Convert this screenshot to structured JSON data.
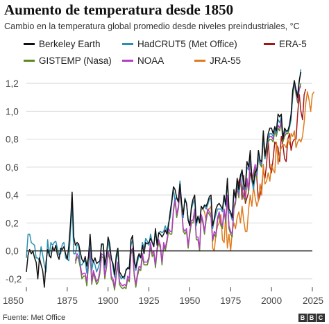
{
  "chart_data": {
    "type": "line",
    "title": "Aumento de temperatura desde 1850",
    "subtitle": "Cambio en la temperatura global promedio desde niveles preindustriales, °C",
    "xlabel": "",
    "ylabel": "",
    "xlim": [
      1850,
      2025
    ],
    "ylim": [
      -0.25,
      1.32
    ],
    "x_ticks": [
      "1850",
      "1875",
      "1900",
      "1925",
      "1950",
      "1975",
      "2000",
      "2025"
    ],
    "x_tick_values": [
      1850,
      1875,
      1900,
      1925,
      1950,
      1975,
      2000,
      2025
    ],
    "y_ticks": [
      "-0,2",
      "0,0",
      "0,2",
      "0,4",
      "0,6",
      "0,8",
      "1,0",
      "1,2"
    ],
    "y_tick_values": [
      -0.2,
      0.0,
      0.2,
      0.4,
      0.6,
      0.8,
      1.0,
      1.2
    ],
    "grid": true,
    "legend_position": "top",
    "series": [
      {
        "name": "Berkeley Earth",
        "color": "#111111",
        "start": 1850,
        "values": [
          -0.15,
          -0.03,
          0.01,
          -0.02,
          0.0,
          -0.05,
          -0.08,
          -0.2,
          -0.05,
          -0.1,
          -0.14,
          -0.26,
          -0.08,
          0.01,
          -0.03,
          -0.05,
          0.03,
          0.0,
          0.04,
          -0.03,
          -0.06,
          0.02,
          0.01,
          0.03,
          -0.02,
          -0.06,
          0.04,
          0.2,
          0.42,
          0.1,
          0.04,
          0.06,
          0.05,
          -0.01,
          -0.06,
          -0.08,
          -0.04,
          -0.11,
          -0.04,
          0.12,
          -0.05,
          -0.08,
          -0.05,
          -0.09,
          -0.08,
          -0.07,
          0.05,
          0.05,
          -0.1,
          -0.03,
          0.1,
          0.05,
          -0.06,
          -0.09,
          -0.17,
          -0.03,
          0.02,
          -0.15,
          -0.17,
          -0.19,
          -0.18,
          -0.14,
          -0.12,
          -0.13,
          0.08,
          0.11,
          -0.08,
          -0.12,
          -0.05,
          -0.02,
          -0.05,
          0.04,
          -0.02,
          0.06,
          0.05,
          0.06,
          0.09,
          0.06,
          0.03,
          0.16,
          0.04,
          0.13,
          0.12,
          0.1,
          0.12,
          0.15,
          0.12,
          0.18,
          0.28,
          0.36,
          0.46,
          0.44,
          0.38,
          0.35,
          0.48,
          0.34,
          0.26,
          0.37,
          0.34,
          0.22,
          0.18,
          0.32,
          0.37,
          0.4,
          0.2,
          0.25,
          0.2,
          0.32,
          0.3,
          0.33,
          0.32,
          0.35,
          0.39,
          0.4,
          0.18,
          0.23,
          0.3,
          0.33,
          0.34,
          0.32,
          0.3,
          0.4,
          0.33,
          0.52,
          0.3,
          0.28,
          0.24,
          0.44,
          0.38,
          0.52,
          0.44,
          0.54,
          0.58,
          0.48,
          0.46,
          0.64,
          0.6,
          0.72,
          0.52,
          0.48,
          0.56,
          0.58,
          0.72,
          0.65,
          0.64,
          0.86,
          0.68,
          0.76,
          0.84,
          0.88,
          0.88,
          0.84,
          0.89,
          0.86,
          0.98,
          0.96,
          0.98,
          0.8,
          0.88,
          0.86,
          0.86,
          0.9,
          0.98,
          1.15,
          1.22,
          1.15,
          1.1,
          1.22,
          1.28
        ]
      },
      {
        "name": "HadCRUT5 (Met Office)",
        "color": "#2a8fb0",
        "start": 1850,
        "values": [
          -0.05,
          0.12,
          0.12,
          0.06,
          0.05,
          0.04,
          -0.05,
          -0.05,
          -0.07,
          0.03,
          -0.03,
          -0.1,
          -0.15,
          0.08,
          -0.04,
          0.06,
          0.04,
          0.06,
          0.07,
          0.02,
          -0.03,
          -0.02,
          0.05,
          0.06,
          -0.05,
          -0.06,
          -0.07,
          0.15,
          0.33,
          -0.02,
          -0.02,
          0.04,
          0.05,
          -0.1,
          -0.1,
          -0.08,
          -0.07,
          -0.16,
          -0.05,
          0.1,
          -0.14,
          -0.07,
          -0.1,
          -0.15,
          -0.12,
          -0.08,
          0.05,
          0.04,
          -0.12,
          -0.04,
          0.08,
          0.0,
          -0.04,
          -0.12,
          -0.19,
          -0.06,
          -0.01,
          -0.17,
          -0.2,
          -0.19,
          -0.2,
          -0.13,
          -0.13,
          -0.11,
          0.04,
          0.08,
          -0.04,
          -0.14,
          -0.08,
          -0.03,
          -0.05,
          0.06,
          0.02,
          0.09,
          0.07,
          0.04,
          0.12,
          0.06,
          0.04,
          0.14,
          0.05,
          0.13,
          0.14,
          0.13,
          0.14,
          0.18,
          0.14,
          0.2,
          0.24,
          0.34,
          0.44,
          0.36,
          0.38,
          0.36,
          0.5,
          0.33,
          0.24,
          0.38,
          0.34,
          0.22,
          0.2,
          0.3,
          0.34,
          0.37,
          0.18,
          0.24,
          0.22,
          0.3,
          0.3,
          0.32,
          0.3,
          0.33,
          0.37,
          0.38,
          0.16,
          0.22,
          0.26,
          0.3,
          0.3,
          0.3,
          0.28,
          0.38,
          0.32,
          0.5,
          0.28,
          0.26,
          0.22,
          0.42,
          0.38,
          0.5,
          0.42,
          0.52,
          0.56,
          0.44,
          0.44,
          0.6,
          0.58,
          0.7,
          0.5,
          0.44,
          0.54,
          0.56,
          0.7,
          0.62,
          0.62,
          0.84,
          0.66,
          0.76,
          0.8,
          0.84,
          0.84,
          0.82,
          0.88,
          0.84,
          0.94,
          0.92,
          0.96,
          0.82,
          0.86,
          0.85,
          0.86,
          0.88,
          0.94,
          1.12,
          1.2,
          1.16,
          1.12,
          1.22,
          1.3
        ]
      },
      {
        "name": "ERA-5",
        "color": "#a01818",
        "start": 1979,
        "values": [
          0.42,
          0.5,
          0.53,
          0.37,
          0.54,
          0.34,
          0.38,
          0.42,
          0.56,
          0.52,
          0.46,
          0.6,
          0.52,
          0.36,
          0.4,
          0.46,
          0.58,
          0.52,
          0.62,
          0.8,
          0.6,
          0.56,
          0.66,
          0.78,
          0.76,
          0.74,
          0.64,
          0.82,
          0.76,
          0.66,
          0.64,
          0.8,
          0.84,
          0.72,
          0.78,
          0.8,
          0.8,
          0.98,
          1.12,
          1.0,
          0.94,
          1.12,
          1.16
        ]
      },
      {
        "name": "GISTEMP (Nasa)",
        "color": "#5a8a1c",
        "start": 1880,
        "values": [
          -0.09,
          -0.04,
          -0.06,
          -0.12,
          -0.2,
          -0.18,
          -0.18,
          -0.25,
          -0.1,
          0.0,
          -0.24,
          -0.16,
          -0.2,
          -0.24,
          -0.22,
          -0.16,
          -0.04,
          -0.05,
          -0.2,
          -0.12,
          -0.02,
          -0.06,
          -0.2,
          -0.22,
          -0.28,
          -0.18,
          -0.1,
          -0.24,
          -0.26,
          -0.27,
          -0.26,
          -0.27,
          -0.2,
          -0.22,
          -0.02,
          0.0,
          -0.18,
          -0.26,
          -0.18,
          -0.13,
          -0.14,
          -0.04,
          -0.1,
          -0.1,
          -0.1,
          -0.06,
          0.04,
          -0.04,
          -0.02,
          -0.12,
          0.0,
          0.06,
          0.02,
          -0.1,
          0.04,
          0.0,
          0.06,
          0.14,
          0.12,
          0.12,
          0.28,
          0.36,
          0.24,
          0.3,
          0.42,
          0.3,
          0.14,
          0.12,
          0.14,
          0.02,
          0.12,
          0.2,
          0.2,
          0.28,
          0.08,
          0.08,
          0.0,
          0.24,
          0.2,
          0.12,
          0.22,
          0.28,
          0.26,
          0.24,
          0.07,
          0.12,
          0.1,
          0.22,
          0.26,
          0.18,
          0.16,
          0.28,
          0.2,
          0.38,
          0.16,
          0.12,
          0.1,
          0.3,
          0.34,
          0.46,
          0.38,
          0.52,
          0.42,
          0.38,
          0.36,
          0.5,
          0.42,
          0.66,
          0.5,
          0.54,
          0.6,
          0.52,
          0.66,
          0.62,
          0.6,
          0.82,
          0.66,
          0.72,
          0.78,
          0.8,
          0.8,
          0.78,
          0.86,
          0.82,
          0.88,
          0.86,
          0.92,
          0.78,
          0.82,
          0.84,
          0.84,
          0.88,
          0.96,
          1.1,
          1.2,
          1.12,
          1.06,
          1.16,
          1.2
        ]
      },
      {
        "name": "NOAA",
        "color": "#b33dc6",
        "start": 1880,
        "values": [
          -0.07,
          -0.02,
          -0.04,
          -0.1,
          -0.17,
          -0.16,
          -0.16,
          -0.22,
          -0.08,
          0.02,
          -0.22,
          -0.14,
          -0.18,
          -0.22,
          -0.2,
          -0.14,
          -0.02,
          -0.03,
          -0.18,
          -0.1,
          0.0,
          -0.04,
          -0.18,
          -0.2,
          -0.26,
          -0.16,
          -0.08,
          -0.22,
          -0.24,
          -0.25,
          -0.24,
          -0.25,
          -0.18,
          -0.2,
          0.0,
          0.02,
          -0.16,
          -0.24,
          -0.16,
          -0.11,
          -0.12,
          -0.02,
          -0.08,
          -0.08,
          -0.08,
          -0.04,
          0.06,
          -0.02,
          0.0,
          -0.1,
          0.02,
          0.08,
          0.04,
          -0.08,
          0.06,
          0.02,
          0.08,
          0.16,
          0.14,
          0.14,
          0.3,
          0.38,
          0.26,
          0.32,
          0.44,
          0.32,
          0.16,
          0.14,
          0.16,
          0.04,
          0.14,
          0.22,
          0.22,
          0.3,
          0.1,
          0.1,
          0.02,
          0.26,
          0.22,
          0.14,
          0.24,
          0.3,
          0.28,
          0.26,
          0.08,
          0.14,
          0.12,
          0.24,
          0.28,
          0.2,
          0.18,
          0.3,
          0.22,
          0.4,
          0.18,
          0.14,
          0.12,
          0.32,
          0.36,
          0.48,
          0.4,
          0.54,
          0.44,
          0.4,
          0.38,
          0.52,
          0.44,
          0.68,
          0.52,
          0.56,
          0.62,
          0.54,
          0.68,
          0.64,
          0.62,
          0.84,
          0.68,
          0.74,
          0.8,
          0.82,
          0.82,
          0.8,
          0.88,
          0.84,
          0.9,
          0.88,
          0.94,
          0.8,
          0.84,
          0.86,
          0.86,
          0.9,
          0.98,
          1.12,
          1.2,
          1.14,
          1.08,
          1.16,
          1.18
        ]
      },
      {
        "name": "JRA-55",
        "color": "#e07a1c",
        "start": 1958,
        "values": [
          0.3,
          0.28,
          0.22,
          0.3,
          0.3,
          0.32,
          0.02,
          0.0,
          0.12,
          0.18,
          0.2,
          0.26,
          0.08,
          0.06,
          0.26,
          0.02,
          0.12,
          0.0,
          0.14,
          0.2,
          0.16,
          0.24,
          0.28,
          0.2,
          0.32,
          0.22,
          0.14,
          0.14,
          0.3,
          0.4,
          0.32,
          0.46,
          0.38,
          0.32,
          0.36,
          0.48,
          0.4,
          0.62,
          0.48,
          0.5,
          0.56,
          0.5,
          0.62,
          0.58,
          0.56,
          0.78,
          0.62,
          0.7,
          0.74,
          0.76,
          0.76,
          0.74,
          0.8,
          0.76,
          0.84,
          0.82,
          0.86,
          0.74,
          0.78,
          0.8,
          0.78,
          0.82,
          0.92,
          1.06,
          1.14,
          1.08,
          1.0,
          1.12,
          1.14
        ]
      }
    ]
  },
  "source": "Fuente: Met Office",
  "logo_letters": [
    "B",
    "B",
    "C"
  ]
}
